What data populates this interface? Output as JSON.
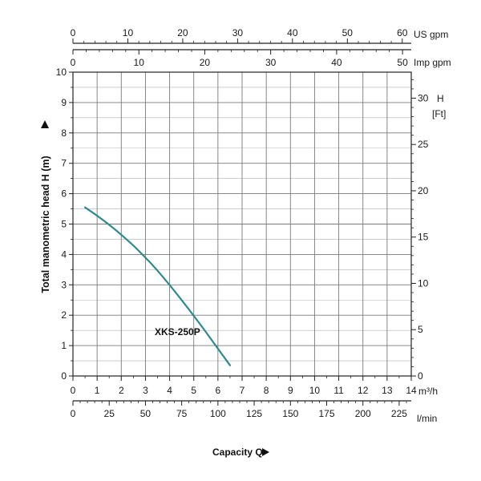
{
  "chart_data": {
    "type": "line",
    "title": "",
    "xlabel": "Capacity Q",
    "ylabel": "Total manometric head H (m)",
    "xlim": [
      0,
      14
    ],
    "ylim": [
      0,
      10
    ],
    "grid": true,
    "x_ticks": [
      0,
      1,
      2,
      3,
      4,
      5,
      6,
      7,
      8,
      9,
      10,
      11,
      12,
      13,
      14
    ],
    "y_ticks": [
      0,
      1,
      2,
      3,
      4,
      5,
      6,
      7,
      8,
      9,
      10
    ],
    "x_unit": "m³/h",
    "axes": {
      "us_gpm": {
        "unit": "US gpm",
        "ticks": [
          0,
          10,
          20,
          30,
          40,
          50,
          60
        ]
      },
      "imp_gpm": {
        "unit": "Imp gpm",
        "ticks": [
          0,
          10,
          20,
          30,
          40,
          50
        ]
      },
      "l_min": {
        "unit": "l/min",
        "ticks": [
          0,
          25,
          50,
          75,
          100,
          125,
          150,
          175,
          200,
          225
        ]
      },
      "ft": {
        "unit_line1": "H",
        "unit_line2": "[Ft]",
        "ticks": [
          0,
          5,
          10,
          15,
          20,
          25,
          30
        ]
      }
    },
    "series": [
      {
        "name": "XKS-250P",
        "color": "#2e8a8e",
        "x": [
          0.5,
          1.0,
          1.5,
          2.0,
          2.5,
          3.0,
          3.5,
          4.0,
          4.5,
          5.0,
          5.5,
          6.0,
          6.5
        ],
        "y": [
          5.55,
          5.28,
          4.98,
          4.65,
          4.3,
          3.9,
          3.47,
          3.0,
          2.5,
          1.98,
          1.45,
          0.9,
          0.35
        ]
      }
    ]
  },
  "colors": {
    "grid": "#7a7a7a",
    "frame": "#222222",
    "curve": "#2e8a8e"
  }
}
